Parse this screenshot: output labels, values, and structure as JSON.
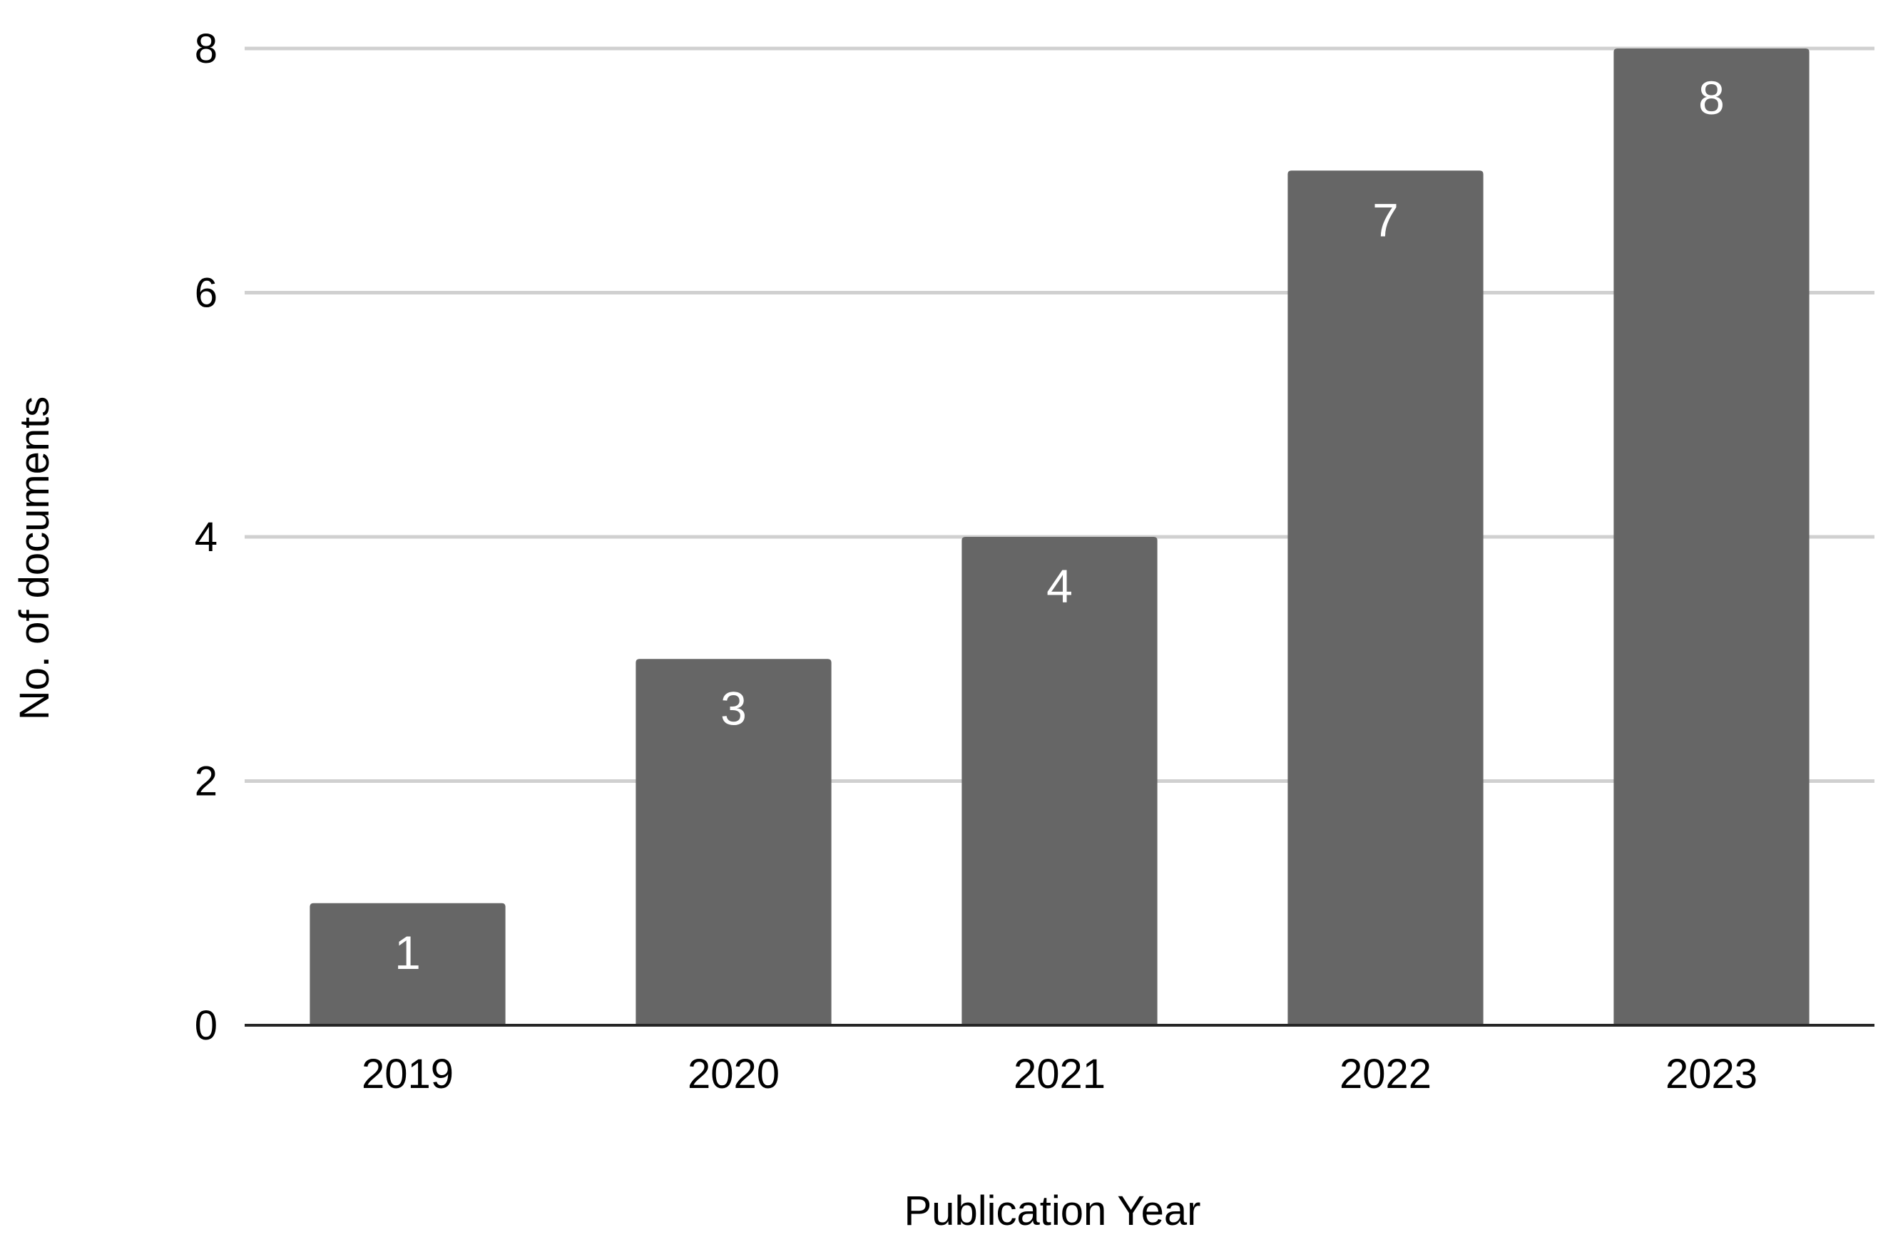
{
  "chart_data": {
    "type": "bar",
    "categories": [
      "2019",
      "2020",
      "2021",
      "2022",
      "2023"
    ],
    "values": [
      1,
      3,
      4,
      7,
      8
    ],
    "data_labels": [
      "1",
      "3",
      "4",
      "7",
      "8"
    ],
    "title": "",
    "xlabel": "Publication Year",
    "ylabel": "No. of documents",
    "ylim": [
      0,
      8
    ],
    "yticks": [
      0,
      2,
      4,
      6,
      8
    ],
    "ytick_labels": [
      "0",
      "2",
      "4",
      "6",
      "8"
    ],
    "grid": "horizontal",
    "legend": "none",
    "colors": {
      "bar": "#666666",
      "grid": "#d0d0d0",
      "axis": "#262626",
      "data_label": "#ffffff"
    }
  }
}
